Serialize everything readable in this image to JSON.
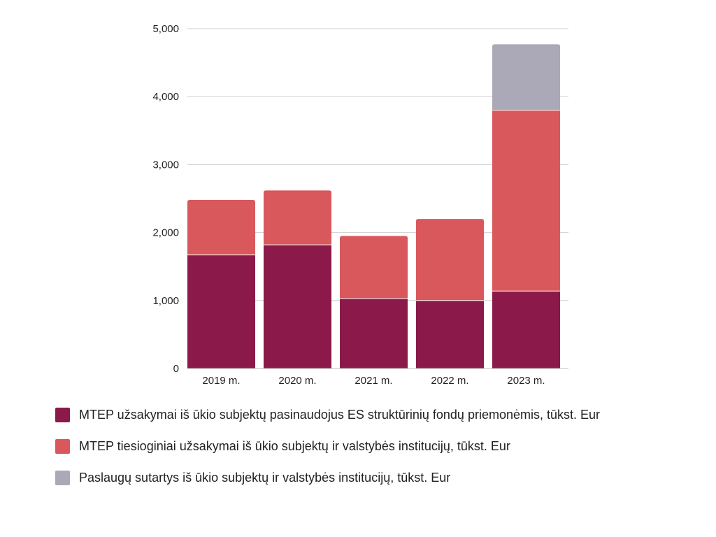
{
  "chart_data": {
    "type": "bar",
    "stacked": true,
    "categories": [
      "2019 m.",
      "2020 m.",
      "2021 m.",
      "2022 m.",
      "2023 m."
    ],
    "series": [
      {
        "name": "MTEP užsakymai iš ūkio subjektų pasinaudojus ES struktūrinių fondų priemonėmis, tūkst. Eur",
        "values": [
          1670,
          1820,
          1030,
          1000,
          1140
        ],
        "color": "#8b1a4a"
      },
      {
        "name": "MTEP tiesioginiai užsakymai iš ūkio subjektų ir valstybės institucijų, tūkst. Eur",
        "values": [
          810,
          800,
          920,
          1200,
          2660
        ],
        "color": "#d9585c"
      },
      {
        "name": "Paslaugų sutartys iš ūkio subjektų ir valstybės institucijų, tūkst. Eur",
        "values": [
          0,
          0,
          0,
          0,
          970
        ],
        "color": "#aba8b7"
      }
    ],
    "yticks": [
      "0",
      "1,000",
      "2,000",
      "3,000",
      "4,000",
      "5,000"
    ],
    "ylim": [
      0,
      5000
    ],
    "grid": true,
    "legend_position": "bottom"
  }
}
